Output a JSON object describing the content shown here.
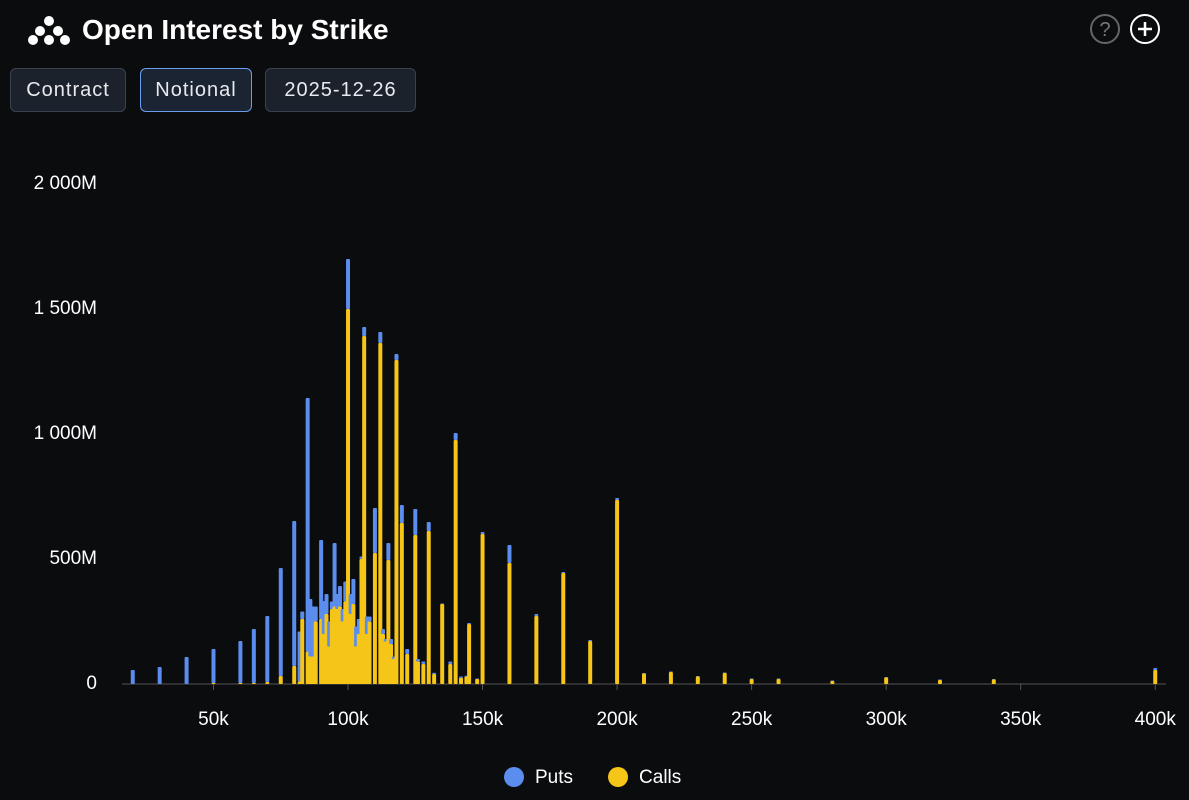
{
  "header": {
    "title": "Open Interest by Strike",
    "buttons": [
      "Contract",
      "Notional",
      "2025-12-26"
    ]
  },
  "chart_data": {
    "type": "bar",
    "stacked": true,
    "x": [
      20000,
      30000,
      40000,
      50000,
      60000,
      65000,
      70000,
      75000,
      80000,
      82000,
      83000,
      85000,
      86000,
      87000,
      88000,
      90000,
      91000,
      92000,
      93000,
      94000,
      95000,
      96000,
      97000,
      98000,
      99000,
      100000,
      101000,
      102000,
      103000,
      104000,
      105000,
      106000,
      107000,
      108000,
      110000,
      112000,
      113000,
      114000,
      115000,
      116000,
      117000,
      118000,
      120000,
      122000,
      125000,
      126000,
      128000,
      130000,
      132000,
      135000,
      138000,
      140000,
      142000,
      144000,
      145000,
      148000,
      150000,
      160000,
      170000,
      180000,
      190000,
      200000,
      210000,
      220000,
      230000,
      240000,
      250000,
      260000,
      280000,
      300000,
      320000,
      340000,
      400000
    ],
    "series": [
      {
        "name": "Puts",
        "color": "#5b8def",
        "values": [
          56,
          68,
          108,
          136,
          168,
          216,
          264,
          432,
          580,
          200,
          30,
          1014,
          230,
          200,
          60,
          316,
          132,
          80,
          100,
          30,
          254,
          60,
          82,
          50,
          80,
          200,
          80,
          100,
          80,
          60,
          10,
          36,
          70,
          20,
          180,
          44,
          20,
          10,
          68,
          20,
          10,
          24,
          72,
          20,
          104,
          10,
          10,
          36,
          5,
          2,
          10,
          28,
          5,
          3,
          4,
          2,
          8,
          72,
          8,
          4,
          4,
          8,
          2,
          2,
          2,
          2,
          2,
          2,
          2,
          2,
          2,
          2,
          8
        ]
      },
      {
        "name": "Calls",
        "color": "#f5c518",
        "values": [
          0,
          0,
          0,
          4,
          4,
          4,
          8,
          32,
          72,
          10,
          260,
          130,
          110,
          110,
          250,
          260,
          200,
          280,
          150,
          300,
          310,
          300,
          310,
          250,
          330,
          1500,
          280,
          320,
          150,
          200,
          500,
          1392,
          200,
          250,
          524,
          1364,
          200,
          170,
          496,
          160,
          100,
          1296,
          644,
          120,
          596,
          90,
          80,
          612,
          40,
          320,
          80,
          976,
          25,
          30,
          240,
          20,
          600,
          484,
          272,
          444,
          172,
          736,
          42,
          48,
          30,
          44,
          20,
          20,
          12,
          26,
          16,
          18,
          56
        ]
      }
    ],
    "xlim": [
      16000,
      404000
    ],
    "xticks": [
      {
        "value": 50000,
        "label": "50k"
      },
      {
        "value": 100000,
        "label": "100k"
      },
      {
        "value": 150000,
        "label": "150k"
      },
      {
        "value": 200000,
        "label": "200k"
      },
      {
        "value": 250000,
        "label": "250k"
      },
      {
        "value": 300000,
        "label": "300k"
      },
      {
        "value": 350000,
        "label": "350k"
      },
      {
        "value": 400000,
        "label": "400k"
      }
    ],
    "ylim": [
      0,
      2000
    ],
    "yticks": [
      0,
      {
        "value": 500,
        "label": "500M"
      },
      {
        "value": 1000,
        "label": "1 000M"
      },
      {
        "value": 1500,
        "label": "1 500M"
      },
      {
        "value": 2000,
        "label": "2 000M"
      }
    ],
    "grid": false,
    "legend": "bottom"
  }
}
